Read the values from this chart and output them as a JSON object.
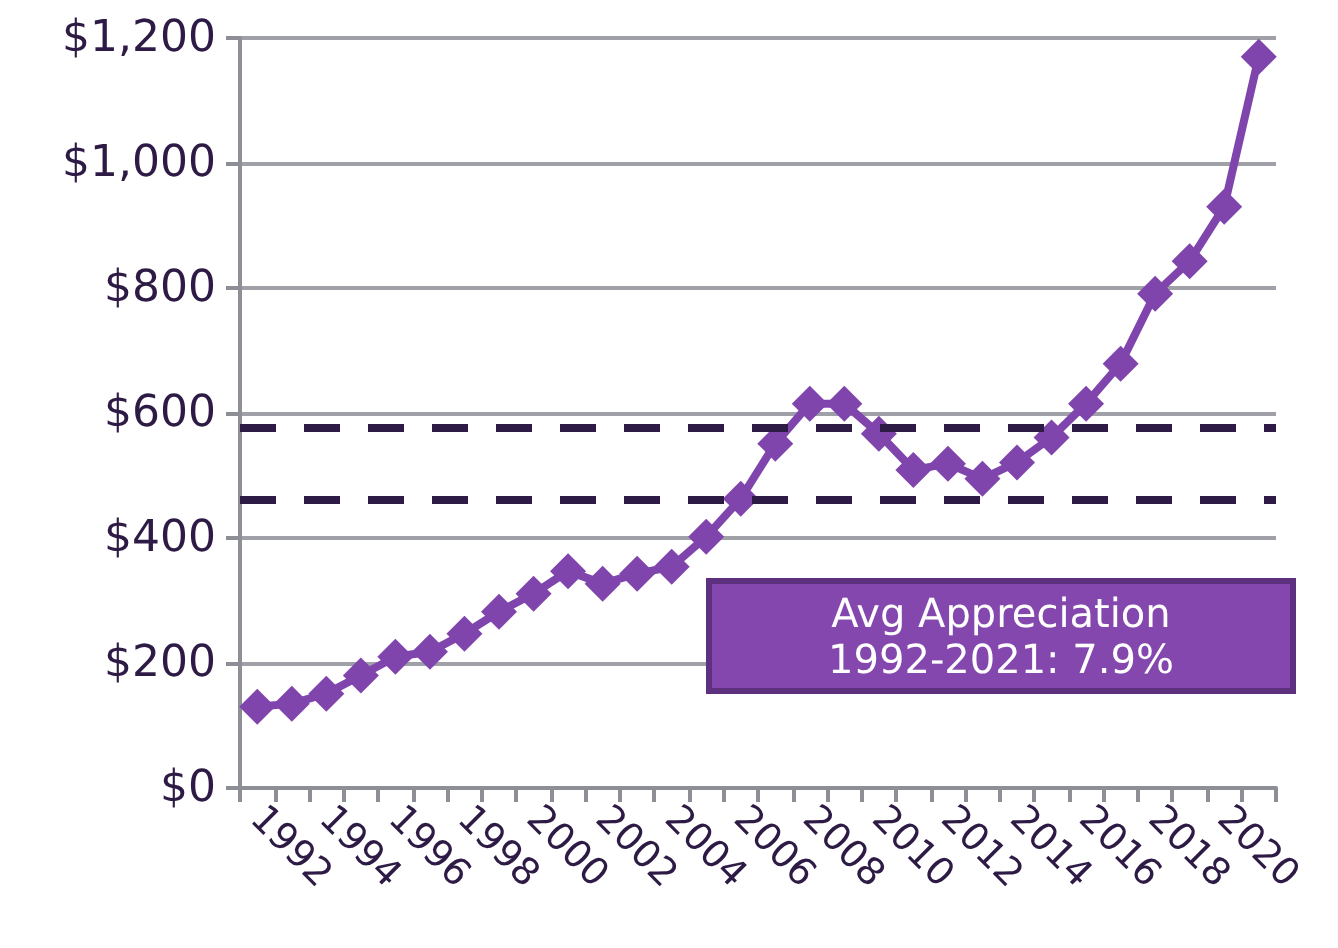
{
  "chart_data": {
    "type": "line",
    "categories": [
      "1992",
      null,
      "1994",
      null,
      "1996",
      null,
      "1998",
      null,
      "2000",
      null,
      "2002",
      null,
      "2004",
      null,
      "2006",
      null,
      "2008",
      null,
      "2010",
      null,
      "2012",
      null,
      "2014",
      null,
      "2016",
      null,
      "2018",
      null,
      "2020",
      null
    ],
    "series": [
      {
        "color": "#7f45ad",
        "values": [
          130,
          135,
          151,
          180,
          210,
          218,
          247,
          282,
          311,
          347,
          327,
          343,
          354,
          402,
          463,
          551,
          615,
          615,
          567,
          509,
          519,
          495,
          521,
          561,
          615,
          679,
          791,
          843,
          930,
          1170
        ]
      }
    ],
    "ylim": [
      0,
      1200
    ],
    "yticks": [
      {
        "value": 0,
        "label": "$0"
      },
      {
        "value": 200,
        "label": "$200"
      },
      {
        "value": 400,
        "label": "$400"
      },
      {
        "value": 600,
        "label": "$600"
      },
      {
        "value": 800,
        "label": "$800"
      },
      {
        "value": 1000,
        "label": "$1,000"
      },
      {
        "value": 1200,
        "label": "$1,200"
      }
    ],
    "grid": "y",
    "marker": "diamond",
    "line_style": "solid",
    "ref_lines": [
      {
        "axis": "y",
        "value": 578,
        "color": "#2d1b45",
        "line_style": "dashed"
      },
      {
        "axis": "y",
        "value": 461,
        "color": "#2d1b45",
        "line_style": "dashed"
      }
    ],
    "annotations": [
      "Avg Appreciation\n1992-2021: 7.9%"
    ]
  }
}
